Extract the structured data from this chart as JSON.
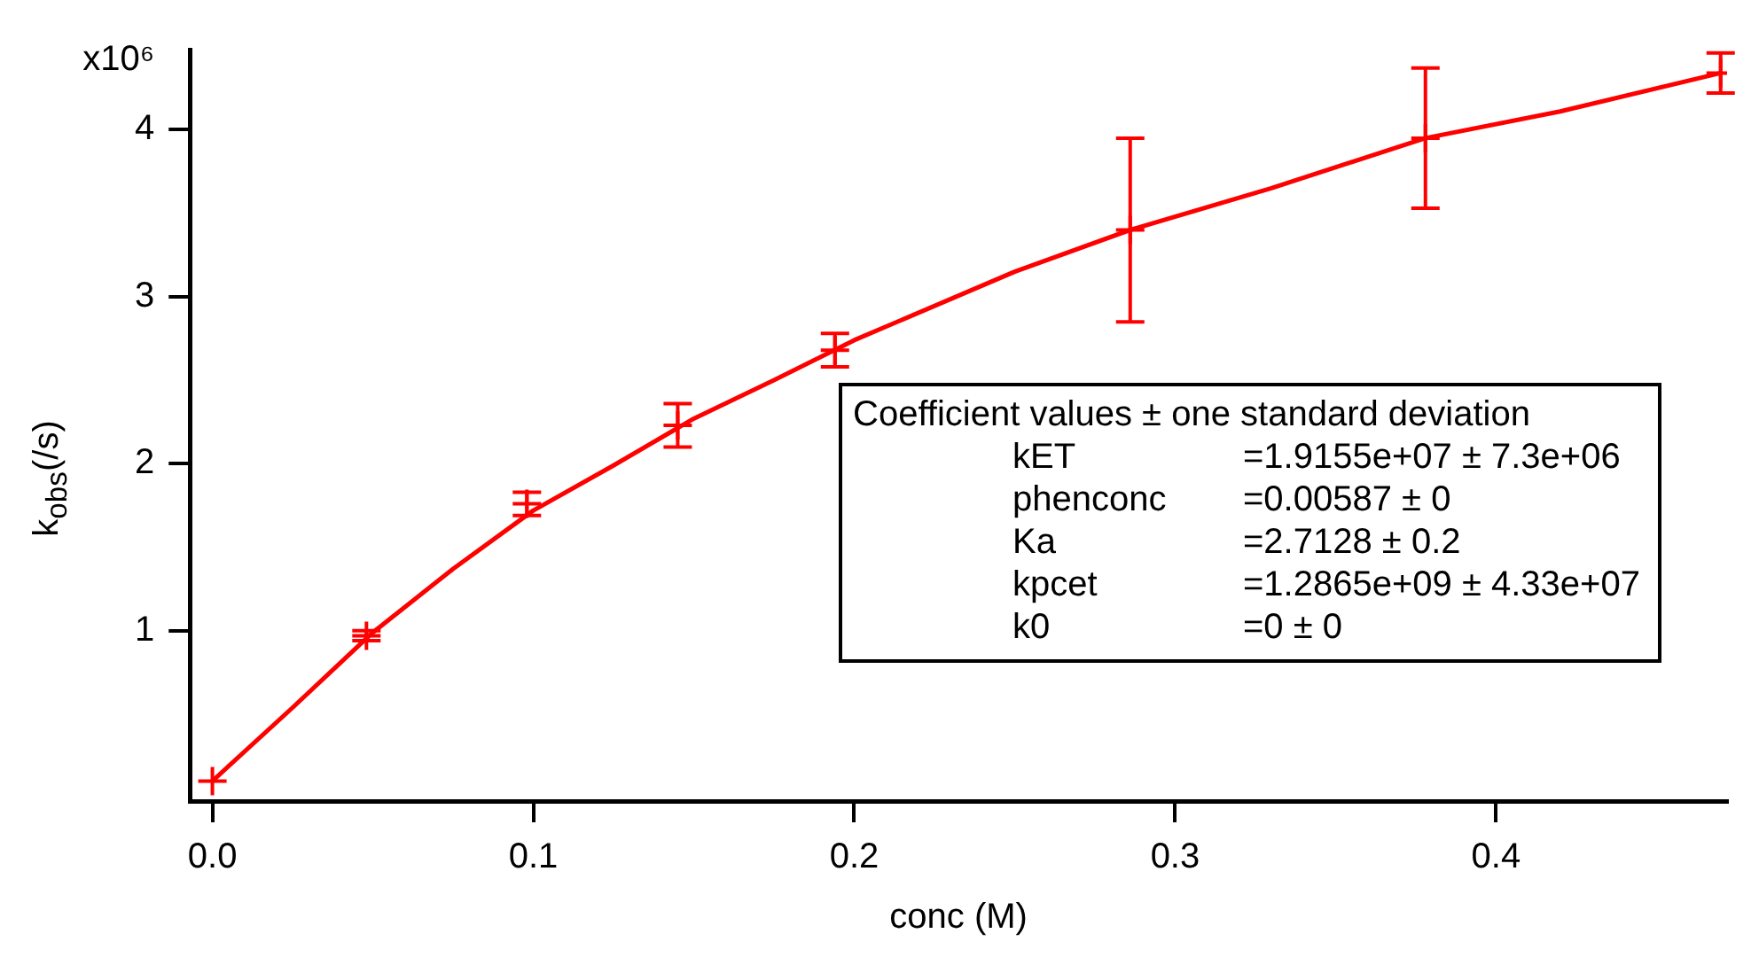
{
  "chart_data": {
    "type": "scatter",
    "xlabel": "conc (M)",
    "ylabel": "k$_{obs}$(/s)",
    "xlim": [
      -0.007,
      0.472
    ],
    "xticks": [
      {
        "value": 0,
        "label": "0.0"
      },
      0.1,
      0.2,
      0.3,
      0.4
    ],
    "ylim": [
      -0.02,
      4.48
    ],
    "yticks": [
      1,
      2,
      3,
      4
    ],
    "grid": false,
    "legend": false,
    "series": [
      {
        "marker": "cross",
        "color": "#ff0000",
        "x": [
          0,
          0.048,
          0.098,
          0.145,
          0.194,
          0.286,
          0.378,
          0.47
        ],
        "values": [
          0.1,
          0.97,
          1.76,
          2.23,
          2.68,
          3.4,
          3.95,
          4.34
        ],
        "errors": [
          null,
          0.03,
          0.07,
          0.13,
          0.1,
          0.55,
          0.42,
          0.12
        ]
      },
      {
        "type": "line",
        "marker": "none",
        "line_style": "solid",
        "color": "#ff0000",
        "x": [
          0,
          0.025,
          0.05,
          0.075,
          0.1,
          0.125,
          0.15,
          0.175,
          0.2,
          0.25,
          0.286,
          0.33,
          0.378,
          0.42,
          0.47
        ],
        "values": [
          0.1,
          0.54,
          0.99,
          1.37,
          1.72,
          1.99,
          2.27,
          2.5,
          2.74,
          3.15,
          3.4,
          3.65,
          3.95,
          4.11,
          4.34
        ]
      }
    ],
    "annotations": [
      "x10⁶",
      "Coefficient values ± one standard deviation",
      "kET =1.9155e+07 ± 7.3e+06",
      "phenconc =0.00587 ± 0",
      "Ka =2.7128 ± 0.2",
      "kpcet =1.2865e+09 ± 4.33e+07",
      "k0 =0 ± 0"
    ]
  }
}
